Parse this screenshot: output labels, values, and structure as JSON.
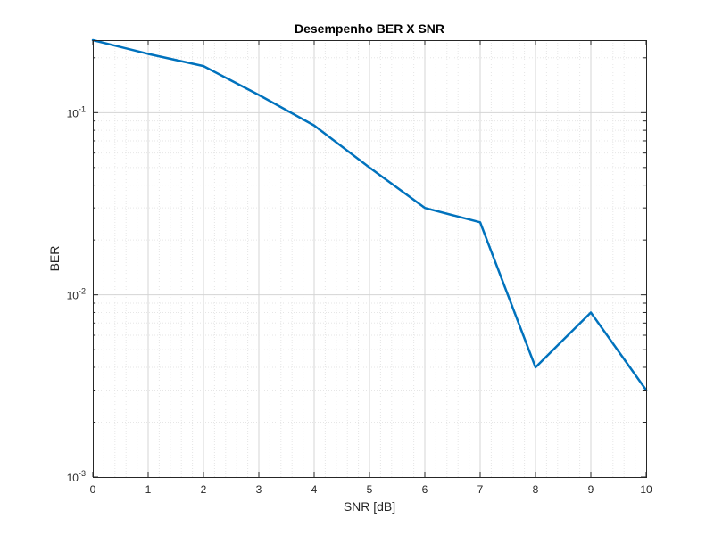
{
  "chart_data": {
    "type": "line",
    "title": "Desempenho BER X SNR",
    "xlabel": "SNR [dB]",
    "ylabel": "BER",
    "xlim": [
      0,
      10
    ],
    "ylim": [
      0.001,
      0.25
    ],
    "yscale": "log",
    "grid": true,
    "minor_grid": true,
    "x_ticks": [
      0,
      1,
      2,
      3,
      4,
      5,
      6,
      7,
      8,
      9,
      10
    ],
    "y_ticks": [
      {
        "value": 0.1,
        "base": "10",
        "exp": "-1"
      },
      {
        "value": 0.01,
        "base": "10",
        "exp": "-2"
      },
      {
        "value": 0.001,
        "base": "10",
        "exp": "-3"
      }
    ],
    "series": [
      {
        "color": "#0072BD",
        "x": [
          0,
          1,
          2,
          3,
          4,
          5,
          6,
          7,
          8,
          9,
          10
        ],
        "y": [
          0.25,
          0.21,
          0.18,
          0.125,
          0.085,
          0.05,
          0.03,
          0.025,
          0.004,
          0.008,
          0.003
        ]
      }
    ]
  }
}
